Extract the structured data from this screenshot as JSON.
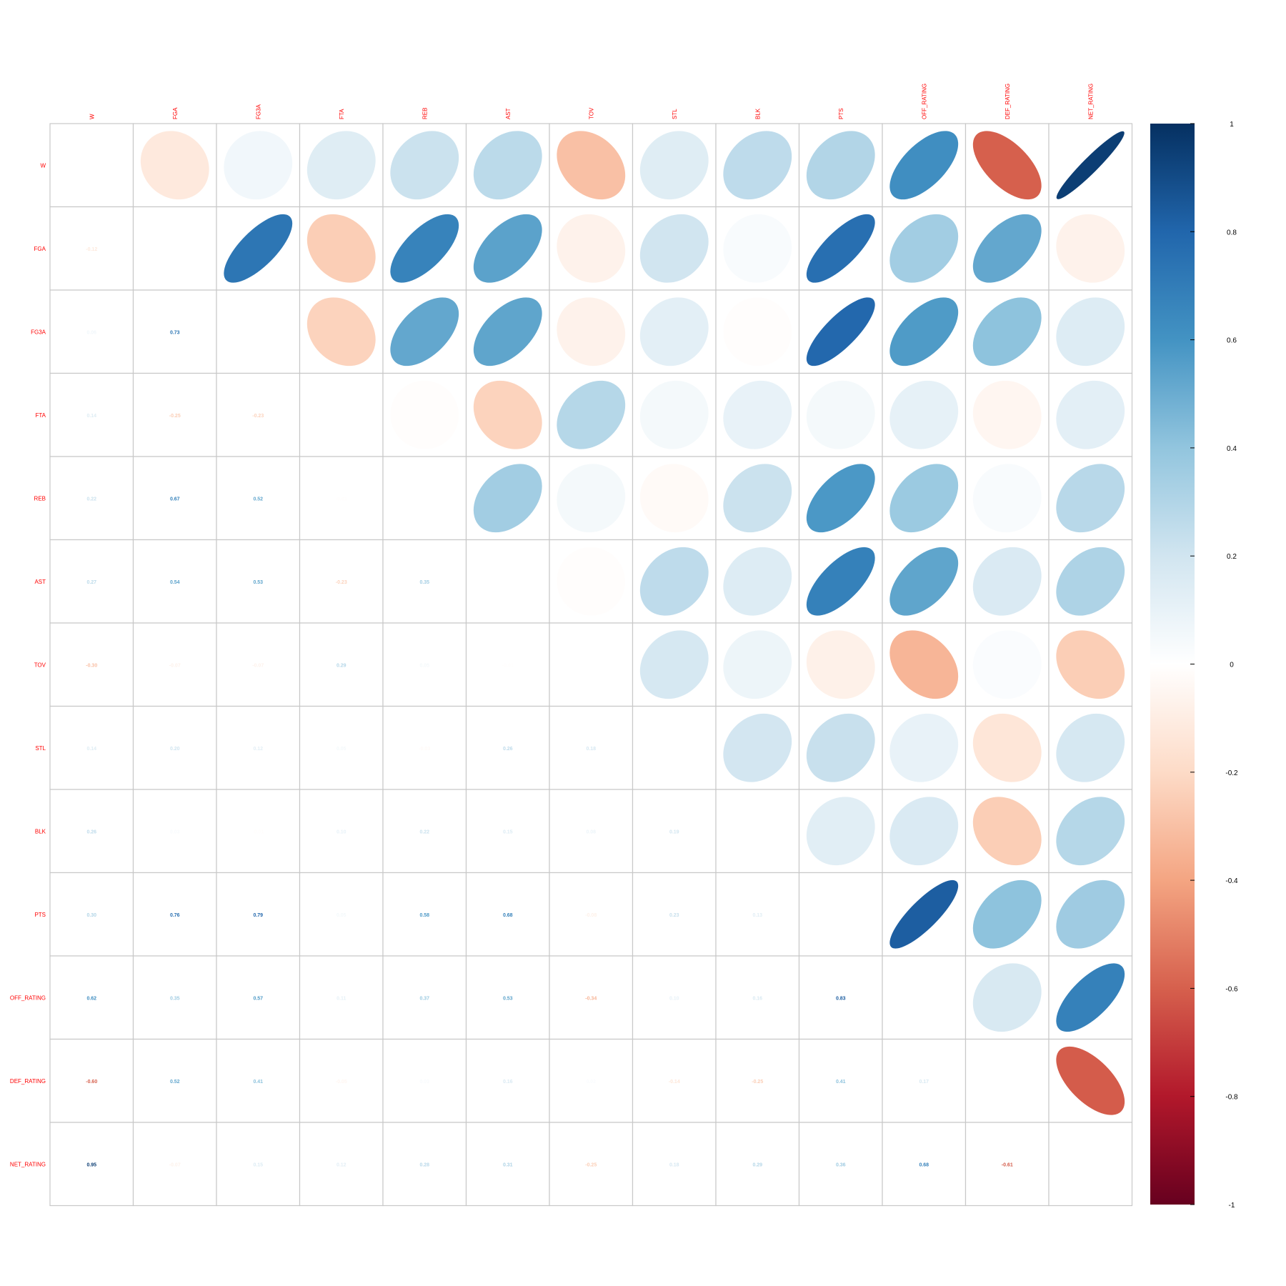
{
  "chart_data": {
    "type": "heatmap",
    "variables": [
      "W",
      "FGA",
      "FG3A",
      "FTA",
      "REB",
      "AST",
      "TOV",
      "STL",
      "BLK",
      "PTS",
      "OFF_RATING",
      "DEF_RATING",
      "NET_RATING"
    ],
    "matrix": [
      [
        1.0,
        -0.12,
        0.06,
        0.14,
        0.22,
        0.27,
        -0.3,
        0.14,
        0.26,
        0.3,
        0.62,
        -0.6,
        0.95
      ],
      [
        -0.12,
        1.0,
        0.73,
        -0.25,
        0.67,
        0.54,
        -0.07,
        0.2,
        0.03,
        0.76,
        0.35,
        0.52,
        -0.07
      ],
      [
        0.06,
        0.73,
        1.0,
        -0.23,
        0.52,
        0.53,
        -0.07,
        0.12,
        -0.01,
        0.79,
        0.57,
        0.41,
        0.15
      ],
      [
        0.14,
        -0.25,
        -0.23,
        1.0,
        -0.01,
        -0.23,
        0.29,
        0.05,
        0.1,
        0.05,
        0.11,
        -0.05,
        0.12
      ],
      [
        0.22,
        0.67,
        0.52,
        -0.01,
        1.0,
        0.35,
        0.05,
        -0.03,
        0.22,
        0.58,
        0.37,
        0.03,
        0.28
      ],
      [
        0.27,
        0.54,
        0.53,
        -0.23,
        0.35,
        1.0,
        -0.01,
        0.26,
        0.15,
        0.68,
        0.53,
        0.16,
        0.31
      ],
      [
        -0.3,
        -0.07,
        -0.07,
        0.29,
        0.05,
        -0.01,
        1.0,
        0.18,
        0.08,
        -0.08,
        -0.34,
        0.02,
        -0.25
      ],
      [
        0.14,
        0.2,
        0.12,
        0.05,
        -0.03,
        0.26,
        0.18,
        1.0,
        0.19,
        0.23,
        0.1,
        -0.14,
        0.18
      ],
      [
        0.26,
        0.03,
        -0.01,
        0.1,
        0.22,
        0.15,
        0.08,
        0.19,
        1.0,
        0.13,
        0.16,
        -0.25,
        0.29
      ],
      [
        0.3,
        0.76,
        0.79,
        0.05,
        0.58,
        0.68,
        -0.08,
        0.23,
        0.13,
        1.0,
        0.83,
        0.41,
        0.36
      ],
      [
        0.62,
        0.35,
        0.57,
        0.11,
        0.37,
        0.53,
        -0.34,
        0.1,
        0.16,
        0.83,
        1.0,
        0.17,
        0.68
      ],
      [
        -0.6,
        0.52,
        0.41,
        -0.05,
        0.03,
        0.16,
        0.02,
        -0.14,
        -0.25,
        0.41,
        0.17,
        1.0,
        -0.61
      ],
      [
        0.95,
        -0.07,
        0.15,
        0.12,
        0.28,
        0.31,
        -0.25,
        0.18,
        0.29,
        0.36,
        0.68,
        -0.61,
        1.0
      ]
    ],
    "upper_glyph": "ellipse",
    "lower_glyph": "number",
    "diagonal": "blank",
    "colorbar": {
      "range": [
        -1,
        1
      ],
      "ticks": [
        1,
        0.8,
        0.6,
        0.4,
        0.2,
        0,
        -0.2,
        -0.4,
        -0.6,
        -0.8,
        -1
      ],
      "tick_labels": [
        "1",
        "0.8",
        "0.6",
        "0.4",
        "0.2",
        "0",
        "-0.2",
        "-0.4",
        "-0.6",
        "-0.8",
        "-1"
      ],
      "colors": [
        "#67001F",
        "#B2182B",
        "#D6604D",
        "#F4A582",
        "#FDDBC7",
        "#FFFFFF",
        "#D1E5F0",
        "#92C5DE",
        "#4393C3",
        "#2166AC",
        "#053061"
      ]
    },
    "label_color": "#FF0000",
    "grid": true
  }
}
